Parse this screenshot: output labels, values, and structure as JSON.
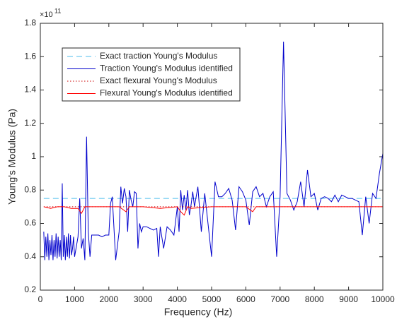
{
  "chart_data": {
    "type": "line",
    "x_label": "Frequency (Hz)",
    "y_label": "Young's Modulus (Pa)",
    "y_multiplier_label": "×10",
    "y_multiplier_exponent": "11",
    "xlim": [
      0,
      10000
    ],
    "xticks": [
      0,
      1000,
      2000,
      3000,
      4000,
      5000,
      6000,
      7000,
      8000,
      9000,
      10000
    ],
    "ylim": [
      0.2,
      1.8
    ],
    "yticks": [
      0.2,
      0.4,
      0.6,
      0.8,
      1,
      1.2,
      1.4,
      1.6,
      1.8
    ],
    "grid": false,
    "legend_position": "upper-left",
    "series": [
      {
        "name": "Exact traction Young's Modulus",
        "color": "#4dbeee",
        "dash": "dashed",
        "x": [
          100,
          10000
        ],
        "values": [
          0.75,
          0.75
        ]
      },
      {
        "name": "Traction Young's Modulus identified",
        "color": "#0000cc",
        "dash": "solid",
        "x": [
          100,
          130,
          160,
          190,
          220,
          250,
          280,
          310,
          340,
          370,
          400,
          430,
          460,
          490,
          520,
          550,
          580,
          610,
          640,
          670,
          700,
          730,
          760,
          790,
          820,
          850,
          880,
          910,
          940,
          970,
          1000,
          1100,
          1150,
          1200,
          1250,
          1300,
          1350,
          1400,
          1450,
          1500,
          1600,
          1700,
          1800,
          1900,
          2000,
          2050,
          2100,
          2200,
          2300,
          2350,
          2400,
          2450,
          2500,
          2550,
          2600,
          2650,
          2700,
          2750,
          2800,
          2850,
          2900,
          2950,
          3000,
          3100,
          3200,
          3300,
          3400,
          3450,
          3500,
          3600,
          3700,
          3800,
          3900,
          4000,
          4050,
          4100,
          4150,
          4200,
          4250,
          4300,
          4350,
          4400,
          4450,
          4500,
          4600,
          4700,
          4800,
          4900,
          5000,
          5100,
          5200,
          5300,
          5400,
          5500,
          5600,
          5700,
          5800,
          5900,
          6000,
          6100,
          6200,
          6300,
          6400,
          6500,
          6600,
          6700,
          6800,
          6900,
          7000,
          7100,
          7200,
          7300,
          7400,
          7500,
          7600,
          7700,
          7800,
          7900,
          8000,
          8100,
          8200,
          8300,
          8400,
          8500,
          8600,
          8700,
          8800,
          8900,
          9000,
          9100,
          9200,
          9300,
          9400,
          9500,
          9600,
          9700,
          9800,
          9900,
          10000
        ],
        "values": [
          0.55,
          0.38,
          0.52,
          0.4,
          0.54,
          0.38,
          0.5,
          0.41,
          0.53,
          0.38,
          0.5,
          0.4,
          0.54,
          0.39,
          0.52,
          0.4,
          0.5,
          0.38,
          0.84,
          0.4,
          0.53,
          0.38,
          0.52,
          0.4,
          0.54,
          0.39,
          0.53,
          0.41,
          0.45,
          0.52,
          0.4,
          0.52,
          0.75,
          0.45,
          0.51,
          0.38,
          1.12,
          0.55,
          0.4,
          0.53,
          0.53,
          0.53,
          0.52,
          0.53,
          0.53,
          0.72,
          0.76,
          0.38,
          0.55,
          0.82,
          0.72,
          0.81,
          0.76,
          0.55,
          0.8,
          0.74,
          0.7,
          0.79,
          0.78,
          0.45,
          0.6,
          0.55,
          0.58,
          0.58,
          0.57,
          0.56,
          0.57,
          0.4,
          0.58,
          0.45,
          0.58,
          0.56,
          0.53,
          0.7,
          0.55,
          0.8,
          0.68,
          0.77,
          0.68,
          0.8,
          0.65,
          0.71,
          0.79,
          0.7,
          0.82,
          0.55,
          0.78,
          0.59,
          0.4,
          0.85,
          0.76,
          0.76,
          0.78,
          0.81,
          0.74,
          0.56,
          0.82,
          0.79,
          0.74,
          0.59,
          0.79,
          0.82,
          0.76,
          0.78,
          0.7,
          0.76,
          0.79,
          0.4,
          0.76,
          1.69,
          0.78,
          0.74,
          0.68,
          0.73,
          0.85,
          0.7,
          0.92,
          0.76,
          0.78,
          0.68,
          0.75,
          0.76,
          0.75,
          0.73,
          0.77,
          0.73,
          0.77,
          0.76,
          0.75,
          0.75,
          0.74,
          0.73,
          0.53,
          0.76,
          0.6,
          0.78,
          0.75,
          0.9,
          1.02
        ]
      },
      {
        "name": "Exact flexural Young's Modulus",
        "color": "#cc0000",
        "dash": "dotted",
        "x": [
          100,
          10000
        ],
        "values": [
          0.7,
          0.7
        ]
      },
      {
        "name": "Flexural Young's Modulus identified",
        "color": "#ff0000",
        "dash": "solid",
        "x": [
          100,
          300,
          500,
          700,
          900,
          1100,
          1200,
          1300,
          1500,
          2000,
          2300,
          2500,
          2600,
          3000,
          3500,
          4000,
          4100,
          4200,
          4300,
          4400,
          5000,
          6000,
          6200,
          6300,
          7000,
          8000,
          9000,
          10000
        ],
        "values": [
          0.7,
          0.69,
          0.7,
          0.7,
          0.69,
          0.69,
          0.66,
          0.7,
          0.7,
          0.7,
          0.7,
          0.67,
          0.7,
          0.7,
          0.69,
          0.7,
          0.67,
          0.65,
          0.7,
          0.69,
          0.7,
          0.7,
          0.67,
          0.7,
          0.7,
          0.7,
          0.7,
          0.7
        ]
      }
    ]
  }
}
